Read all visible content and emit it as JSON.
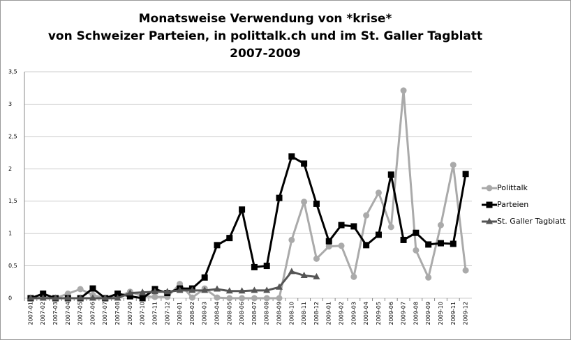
{
  "chart_data": {
    "type": "line",
    "title": [
      "Monatsweise Verwendung von *krise*",
      "von Schweizer Parteien, in polittalk.ch und im St. Galler Tagblatt",
      "2007-2009"
    ],
    "categories": [
      "2007-01",
      "2007-02",
      "2007-03",
      "2007-04",
      "2007-05",
      "2007-06",
      "2007-07",
      "2007-08",
      "2007-09",
      "2007-10",
      "2007-11",
      "2007-12",
      "2008-01",
      "2008-02",
      "2008-03",
      "2008-04",
      "2008-05",
      "2008-06",
      "2008-07",
      "2008-08",
      "2008-09",
      "2008-10",
      "2008-11",
      "2008-12",
      "2009-01",
      "2009-02",
      "2009-03",
      "2009-04",
      "2009-05",
      "2009-06",
      "2009-07",
      "2009-08",
      "2009-09",
      "2009-10",
      "2009-11",
      "2009-12"
    ],
    "series": [
      {
        "name": "Polittalk",
        "color": "#aaaaaa",
        "marker": "circle",
        "values": [
          0,
          0.02,
          0,
          0.07,
          0.14,
          0.05,
          0,
          0.02,
          0.1,
          0.03,
          0.02,
          0.02,
          0.22,
          0.01,
          0.15,
          0.01,
          0,
          0,
          0,
          0,
          0,
          0.9,
          1.49,
          0.61,
          0.8,
          0.81,
          0.33,
          1.28,
          1.63,
          1.1,
          3.21,
          0.74,
          0.32,
          1.13,
          2.06,
          0.43
        ]
      },
      {
        "name": "Parteien",
        "color": "#000000",
        "marker": "square",
        "values": [
          0,
          0.07,
          0,
          0,
          0,
          0.15,
          0,
          0.07,
          0.03,
          0,
          0.14,
          0.08,
          0.15,
          0.15,
          0.32,
          0.82,
          0.93,
          1.37,
          0.48,
          0.5,
          1.55,
          2.19,
          2.08,
          1.46,
          0.88,
          1.13,
          1.11,
          0.82,
          0.98,
          1.91,
          0.9,
          1.01,
          0.83,
          0.85,
          0.84,
          1.92
        ]
      },
      {
        "name": "St. Galler Tagblatt",
        "color": "#555555",
        "marker": "triangle",
        "values": [
          0,
          0,
          0,
          0,
          0,
          0,
          0,
          0,
          0.08,
          0.09,
          0.1,
          0.1,
          0.12,
          0.12,
          0.12,
          0.14,
          0.11,
          0.11,
          0.12,
          0.12,
          0.17,
          0.41,
          0.35,
          0.33,
          null,
          null,
          null,
          null,
          null,
          null,
          null,
          null,
          null,
          null,
          null,
          null
        ]
      }
    ],
    "ylim": [
      0,
      3.5
    ],
    "yticks": [
      0,
      {
        "value": 0.5,
        "label": "0,5"
      },
      1,
      {
        "value": 1.5,
        "label": "1,5"
      },
      2,
      {
        "value": 2.5,
        "label": "2,5"
      },
      3,
      {
        "value": 3.5,
        "label": "3,5"
      }
    ],
    "grid": true,
    "legend": "right"
  }
}
